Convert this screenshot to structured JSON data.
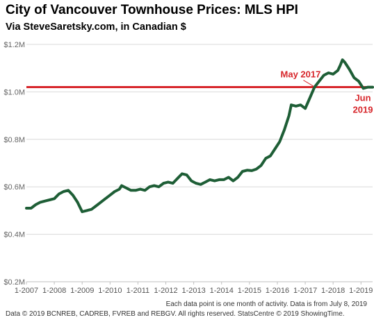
{
  "header": {
    "title": "City of Vancouver Townhouse Prices: MLS HPI",
    "subtitle": "Via SteveSaretsky.com, in Canadian $"
  },
  "footer": {
    "note": "Each data point is one month of activity. Data is from July 8, 2019",
    "credit": "Data © 2019 BCNREB, CADREB, FVREB and REBGV. All rights reserved. StatsCentre © 2019 ShowingTime."
  },
  "colors": {
    "line": "#1e5e36",
    "reference": "#d7262b",
    "grid": "#d9d9d9"
  },
  "chart_data": {
    "type": "line",
    "title": "City of Vancouver Townhouse Prices: MLS HPI",
    "subtitle": "Via SteveSaretsky.com, in Canadian $",
    "xlabel": "",
    "ylabel": "",
    "ylim": [
      200000,
      1200000
    ],
    "yticks": [
      {
        "value": 200000,
        "label": "$0.2M"
      },
      {
        "value": 400000,
        "label": "$0.4M"
      },
      {
        "value": 600000,
        "label": "$0.6M"
      },
      {
        "value": 800000,
        "label": "$0.8M"
      },
      {
        "value": 1000000,
        "label": "$1.0M"
      },
      {
        "value": 1200000,
        "label": "$1.2M"
      }
    ],
    "xlim": [
      "2007-01",
      "2019-06"
    ],
    "xticks": [
      {
        "value": "2007-01",
        "label": "1-2007"
      },
      {
        "value": "2008-01",
        "label": "1-2008"
      },
      {
        "value": "2009-01",
        "label": "1-2009"
      },
      {
        "value": "2010-01",
        "label": "1-2010"
      },
      {
        "value": "2011-01",
        "label": "1-2011"
      },
      {
        "value": "2012-01",
        "label": "1-2012"
      },
      {
        "value": "2013-01",
        "label": "1-2013"
      },
      {
        "value": "2014-01",
        "label": "1-2014"
      },
      {
        "value": "2015-01",
        "label": "1-2015"
      },
      {
        "value": "2016-01",
        "label": "1-2016"
      },
      {
        "value": "2017-01",
        "label": "1-2017"
      },
      {
        "value": "2018-01",
        "label": "1-2018"
      },
      {
        "value": "2019-01",
        "label": "1-2019"
      }
    ],
    "grid": true,
    "series": [
      {
        "name": "",
        "points": [
          [
            "2007-01",
            510000
          ],
          [
            "2007-03",
            510000
          ],
          [
            "2007-05",
            525000
          ],
          [
            "2007-07",
            535000
          ],
          [
            "2007-09",
            540000
          ],
          [
            "2007-11",
            545000
          ],
          [
            "2008-01",
            550000
          ],
          [
            "2008-03",
            570000
          ],
          [
            "2008-05",
            580000
          ],
          [
            "2008-07",
            585000
          ],
          [
            "2008-09",
            565000
          ],
          [
            "2008-11",
            535000
          ],
          [
            "2009-01",
            495000
          ],
          [
            "2009-03",
            500000
          ],
          [
            "2009-05",
            505000
          ],
          [
            "2009-07",
            520000
          ],
          [
            "2009-09",
            535000
          ],
          [
            "2009-11",
            550000
          ],
          [
            "2010-01",
            565000
          ],
          [
            "2010-03",
            580000
          ],
          [
            "2010-05",
            590000
          ],
          [
            "2010-06",
            605000
          ],
          [
            "2010-08",
            595000
          ],
          [
            "2010-10",
            585000
          ],
          [
            "2010-12",
            585000
          ],
          [
            "2011-02",
            590000
          ],
          [
            "2011-04",
            585000
          ],
          [
            "2011-06",
            600000
          ],
          [
            "2011-08",
            605000
          ],
          [
            "2011-10",
            600000
          ],
          [
            "2011-12",
            615000
          ],
          [
            "2012-02",
            620000
          ],
          [
            "2012-04",
            615000
          ],
          [
            "2012-06",
            635000
          ],
          [
            "2012-08",
            655000
          ],
          [
            "2012-10",
            650000
          ],
          [
            "2012-12",
            625000
          ],
          [
            "2013-02",
            615000
          ],
          [
            "2013-04",
            610000
          ],
          [
            "2013-06",
            620000
          ],
          [
            "2013-08",
            630000
          ],
          [
            "2013-10",
            625000
          ],
          [
            "2013-12",
            630000
          ],
          [
            "2014-02",
            630000
          ],
          [
            "2014-04",
            640000
          ],
          [
            "2014-06",
            625000
          ],
          [
            "2014-08",
            640000
          ],
          [
            "2014-10",
            665000
          ],
          [
            "2014-12",
            670000
          ],
          [
            "2015-02",
            668000
          ],
          [
            "2015-04",
            675000
          ],
          [
            "2015-06",
            690000
          ],
          [
            "2015-08",
            720000
          ],
          [
            "2015-10",
            730000
          ],
          [
            "2015-12",
            760000
          ],
          [
            "2016-02",
            790000
          ],
          [
            "2016-04",
            840000
          ],
          [
            "2016-06",
            900000
          ],
          [
            "2016-07",
            945000
          ],
          [
            "2016-09",
            940000
          ],
          [
            "2016-11",
            945000
          ],
          [
            "2017-01",
            930000
          ],
          [
            "2017-03",
            975000
          ],
          [
            "2017-05",
            1020000
          ],
          [
            "2017-07",
            1045000
          ],
          [
            "2017-09",
            1070000
          ],
          [
            "2017-11",
            1080000
          ],
          [
            "2018-01",
            1075000
          ],
          [
            "2018-03",
            1090000
          ],
          [
            "2018-04",
            1110000
          ],
          [
            "2018-05",
            1135000
          ],
          [
            "2018-06",
            1125000
          ],
          [
            "2018-08",
            1095000
          ],
          [
            "2018-10",
            1060000
          ],
          [
            "2018-12",
            1045000
          ],
          [
            "2019-02",
            1015000
          ],
          [
            "2019-04",
            1020000
          ],
          [
            "2019-06",
            1020000
          ]
        ]
      }
    ],
    "reference_line": {
      "value": 1020000
    },
    "annotations": [
      {
        "text": "May 2017",
        "x": "2017-05",
        "y": 1020000
      },
      {
        "text": "Jun",
        "x": "2019-06",
        "y": 1020000
      },
      {
        "text": "2019",
        "x": "2019-06",
        "y": 1020000
      }
    ]
  }
}
